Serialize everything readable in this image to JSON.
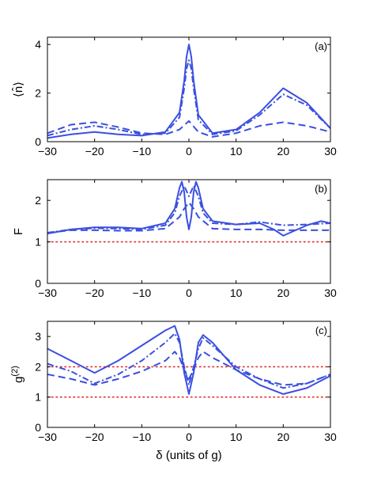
{
  "colors": {
    "curve": "#3a4fe0",
    "reference": "#e03030",
    "axes": "#000000"
  },
  "chart_data": [
    {
      "type": "line",
      "panel_label": "(a)",
      "xlabel": "",
      "ylabel": "⟨n̂⟩",
      "xlim": [
        -30,
        30
      ],
      "ylim": [
        0,
        4.3
      ],
      "xticks": [
        -30,
        -20,
        -10,
        0,
        10,
        20,
        30
      ],
      "yticks": [
        0,
        2,
        4
      ],
      "xticklabels": [
        "−30",
        "−20",
        "−10",
        "0",
        "10",
        "20",
        "30"
      ],
      "yticklabels": [
        "0",
        "2",
        "4"
      ],
      "grid": false,
      "legend": false,
      "series": [
        {
          "style": "solid",
          "x": [
            -30,
            -25,
            -20,
            -15,
            -10,
            -5,
            -2,
            -1,
            -0.5,
            0,
            0.5,
            1,
            2,
            5,
            10,
            15,
            20,
            25,
            30
          ],
          "y": [
            0.15,
            0.3,
            0.4,
            0.3,
            0.25,
            0.4,
            1.2,
            2.5,
            3.5,
            4.0,
            3.5,
            2.5,
            1.1,
            0.35,
            0.5,
            1.2,
            2.2,
            1.6,
            0.55
          ]
        },
        {
          "style": "dashdot",
          "x": [
            -30,
            -25,
            -20,
            -15,
            -10,
            -5,
            -2,
            -1,
            -0.5,
            0,
            0.5,
            1,
            2,
            5,
            10,
            15,
            20,
            25,
            30
          ],
          "y": [
            0.25,
            0.5,
            0.65,
            0.5,
            0.3,
            0.35,
            1.0,
            2.2,
            3.0,
            3.35,
            3.0,
            2.2,
            0.9,
            0.3,
            0.45,
            1.1,
            1.95,
            1.5,
            0.55
          ]
        },
        {
          "style": "dashed",
          "x": [
            -30,
            -25,
            -20,
            -15,
            -10,
            -5,
            -2,
            0,
            2,
            5,
            10,
            15,
            20,
            25,
            30
          ],
          "y": [
            0.35,
            0.7,
            0.8,
            0.6,
            0.35,
            0.3,
            0.5,
            0.85,
            0.4,
            0.2,
            0.35,
            0.65,
            0.8,
            0.65,
            0.4
          ]
        }
      ],
      "reference_lines": []
    },
    {
      "type": "line",
      "panel_label": "(b)",
      "xlabel": "",
      "ylabel": "F",
      "xlim": [
        -30,
        30
      ],
      "ylim": [
        0,
        2.5
      ],
      "xticks": [
        -30,
        -20,
        -10,
        0,
        10,
        20,
        30
      ],
      "yticks": [
        0,
        1,
        2
      ],
      "xticklabels": [
        "−30",
        "−20",
        "−10",
        "0",
        "10",
        "20",
        "30"
      ],
      "yticklabels": [
        "0",
        "1",
        "2"
      ],
      "grid": false,
      "legend": false,
      "series": [
        {
          "style": "solid",
          "x": [
            -30,
            -25,
            -20,
            -15,
            -10,
            -5,
            -3,
            -2,
            -1.5,
            -1,
            -0.5,
            0,
            0.5,
            1,
            1.5,
            2,
            3,
            5,
            10,
            15,
            18,
            20,
            22,
            25,
            28,
            30
          ],
          "y": [
            1.2,
            1.3,
            1.35,
            1.35,
            1.32,
            1.45,
            1.8,
            2.3,
            2.45,
            2.2,
            1.6,
            1.3,
            1.6,
            2.2,
            2.45,
            2.3,
            1.8,
            1.5,
            1.42,
            1.45,
            1.3,
            1.15,
            1.25,
            1.4,
            1.5,
            1.45
          ]
        },
        {
          "style": "dashdot",
          "x": [
            -30,
            -25,
            -20,
            -15,
            -10,
            -5,
            -3,
            -2,
            -1,
            0,
            1,
            2,
            3,
            5,
            10,
            15,
            20,
            25,
            30
          ],
          "y": [
            1.22,
            1.3,
            1.33,
            1.32,
            1.3,
            1.4,
            1.7,
            2.1,
            2.35,
            2.1,
            2.35,
            2.1,
            1.7,
            1.45,
            1.42,
            1.48,
            1.4,
            1.42,
            1.45
          ]
        },
        {
          "style": "dashed",
          "x": [
            -30,
            -25,
            -20,
            -15,
            -10,
            -5,
            -2,
            -1,
            0,
            1,
            2,
            5,
            10,
            15,
            20,
            25,
            30
          ],
          "y": [
            1.22,
            1.28,
            1.28,
            1.27,
            1.27,
            1.32,
            1.6,
            1.8,
            1.95,
            1.8,
            1.6,
            1.32,
            1.3,
            1.3,
            1.28,
            1.28,
            1.28
          ]
        }
      ],
      "reference_lines": [
        {
          "y": 1,
          "style": "dotted"
        }
      ]
    },
    {
      "type": "line",
      "panel_label": "(c)",
      "xlabel": "δ (units of g)",
      "ylabel": "g(2)",
      "xlim": [
        -30,
        30
      ],
      "ylim": [
        0,
        3.5
      ],
      "xticks": [
        -30,
        -20,
        -10,
        0,
        10,
        20,
        30
      ],
      "yticks": [
        0,
        1,
        2,
        3
      ],
      "xticklabels": [
        "−30",
        "−20",
        "−10",
        "0",
        "10",
        "20",
        "30"
      ],
      "yticklabels": [
        "0",
        "1",
        "2",
        "3"
      ],
      "grid": false,
      "legend": false,
      "series": [
        {
          "style": "solid",
          "x": [
            -30,
            -25,
            -20,
            -15,
            -10,
            -5,
            -3,
            -2,
            -1,
            0,
            1,
            2,
            3,
            5,
            10,
            15,
            20,
            25,
            30
          ],
          "y": [
            2.6,
            2.2,
            1.8,
            2.2,
            2.7,
            3.2,
            3.35,
            2.9,
            1.8,
            1.1,
            1.8,
            2.8,
            3.05,
            2.8,
            1.9,
            1.4,
            1.1,
            1.3,
            1.7
          ]
        },
        {
          "style": "dashdot",
          "x": [
            -30,
            -25,
            -20,
            -15,
            -10,
            -5,
            -3,
            -2,
            -1,
            0,
            1,
            2,
            3,
            5,
            10,
            15,
            20,
            25,
            30
          ],
          "y": [
            2.1,
            1.85,
            1.45,
            1.75,
            2.2,
            2.8,
            3.1,
            2.8,
            2.0,
            1.4,
            2.0,
            2.6,
            2.95,
            2.7,
            2.0,
            1.6,
            1.3,
            1.45,
            1.75
          ]
        },
        {
          "style": "dashed",
          "x": [
            -30,
            -25,
            -20,
            -15,
            -10,
            -5,
            -3,
            -2,
            -1,
            0,
            1,
            2,
            3,
            5,
            10,
            15,
            20,
            25,
            30
          ],
          "y": [
            1.75,
            1.6,
            1.4,
            1.6,
            1.85,
            2.2,
            2.5,
            2.3,
            1.9,
            1.6,
            1.9,
            2.3,
            2.5,
            2.3,
            1.9,
            1.6,
            1.4,
            1.45,
            1.75
          ]
        }
      ],
      "reference_lines": [
        {
          "y": 1,
          "style": "dotted"
        },
        {
          "y": 2,
          "style": "dotted"
        }
      ]
    }
  ]
}
